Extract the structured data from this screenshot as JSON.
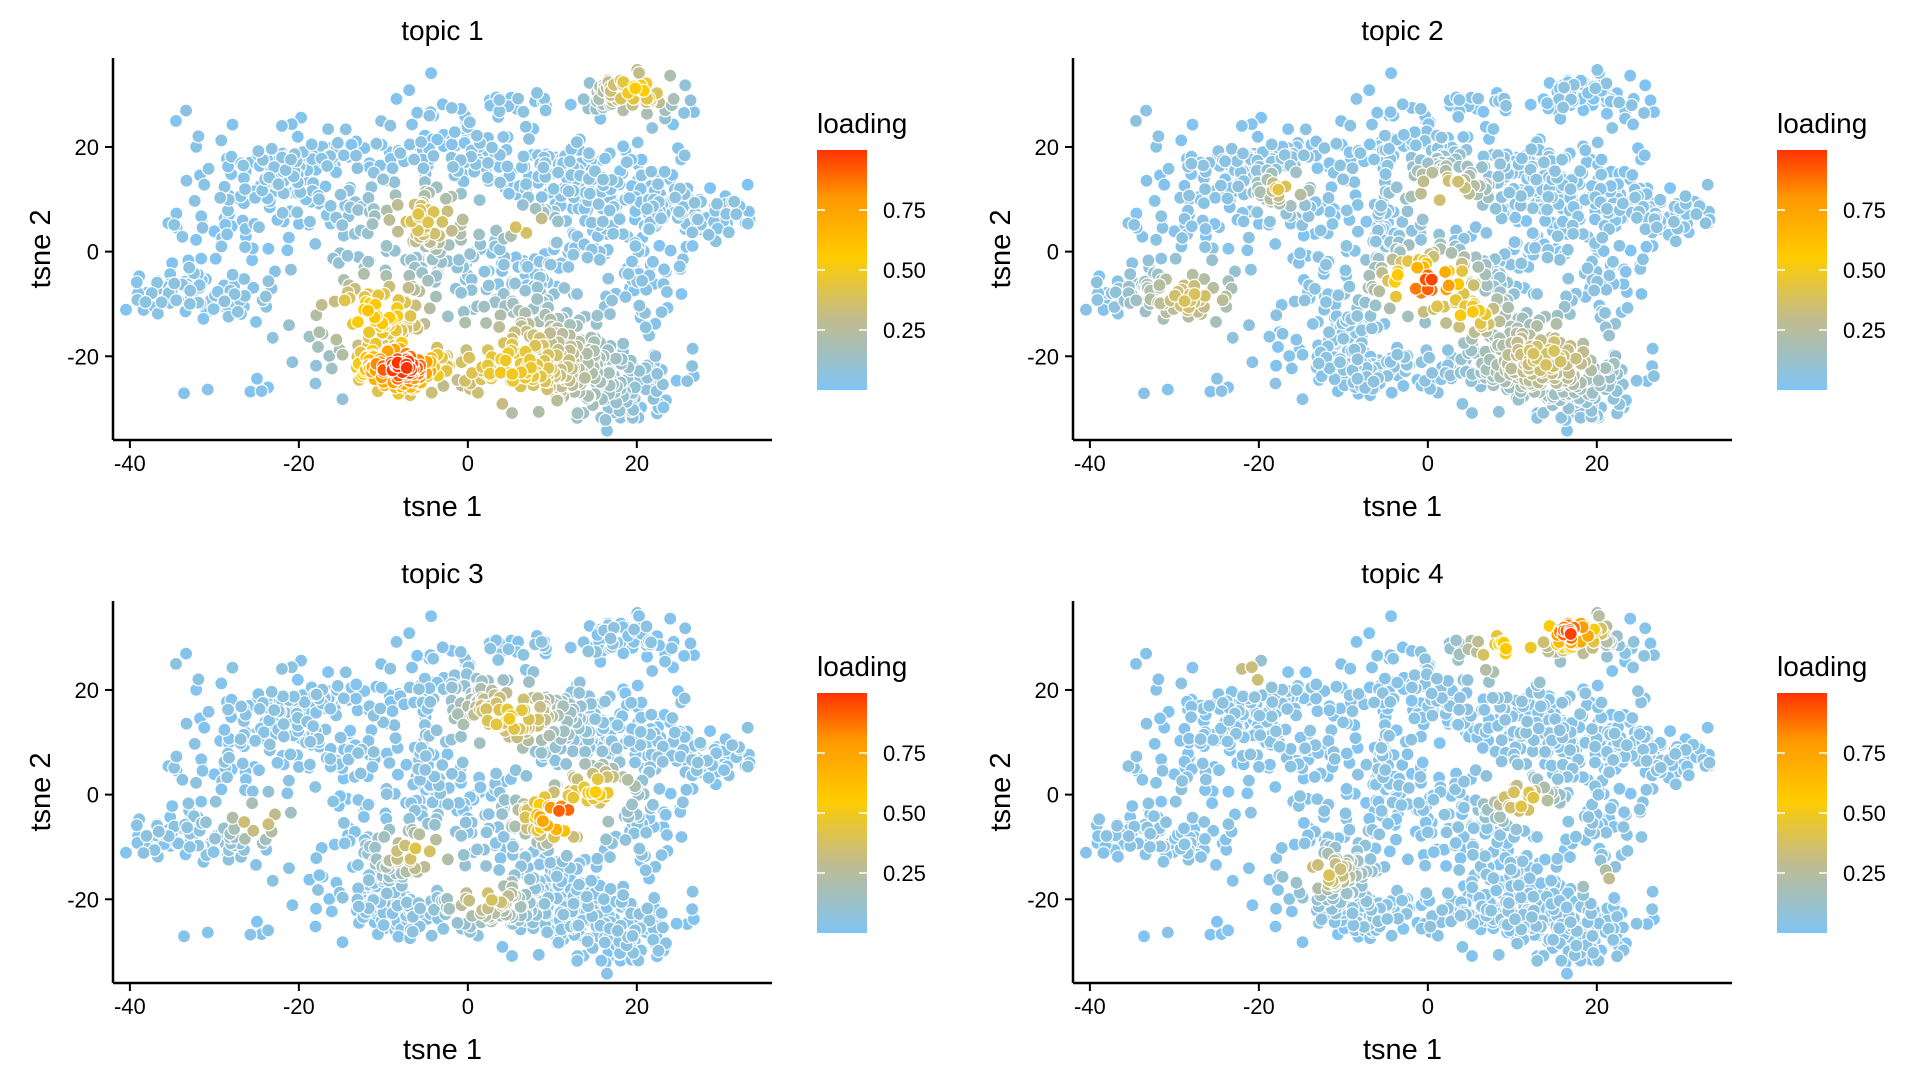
{
  "chart_data": [
    {
      "type": "scatter",
      "title": "topic 1",
      "xlabel": "tsne 1",
      "ylabel": "tsne 2",
      "xlim": [
        -42,
        36
      ],
      "ylim": [
        -36,
        37
      ],
      "xticks": [
        -40,
        -20,
        0,
        20
      ],
      "yticks": [
        -20,
        0,
        20
      ],
      "x_tick_labels": [
        "-40",
        "-20",
        "0",
        "20"
      ],
      "y_tick_labels": [
        "-20",
        "0",
        "20"
      ],
      "grid": false,
      "legend": {
        "title": "loading",
        "position": "right",
        "ticks": [
          0.25,
          0.5,
          0.75
        ],
        "tick_labels": [
          "0.25",
          "0.50",
          "0.75"
        ],
        "range": [
          0,
          1
        ]
      },
      "hotspots": [
        {
          "x": -8,
          "y": -22,
          "peak": 1.0,
          "spread": 4
        },
        {
          "x": -11,
          "y": -12,
          "peak": 0.55,
          "spread": 5
        },
        {
          "x": -5,
          "y": 6,
          "peak": 0.4,
          "spread": 4
        },
        {
          "x": 5,
          "y": -22,
          "peak": 0.45,
          "spread": 7
        },
        {
          "x": 20,
          "y": 31,
          "peak": 0.5,
          "spread": 3
        },
        {
          "x": 7,
          "y": 5,
          "peak": 0.45,
          "spread": 2
        }
      ]
    },
    {
      "type": "scatter",
      "title": "topic 2",
      "xlabel": "tsne 1",
      "ylabel": "tsne 2",
      "xlim": [
        -42,
        36
      ],
      "ylim": [
        -36,
        37
      ],
      "xticks": [
        -40,
        -20,
        0,
        20
      ],
      "yticks": [
        -20,
        0,
        20
      ],
      "x_tick_labels": [
        "-40",
        "-20",
        "0",
        "20"
      ],
      "y_tick_labels": [
        "-20",
        "0",
        "20"
      ],
      "grid": false,
      "legend": {
        "title": "loading",
        "position": "right",
        "ticks": [
          0.25,
          0.5,
          0.75
        ],
        "tick_labels": [
          "0.25",
          "0.50",
          "0.75"
        ],
        "range": [
          0,
          1
        ]
      },
      "hotspots": [
        {
          "x": 0,
          "y": -6,
          "peak": 0.95,
          "spread": 3.5
        },
        {
          "x": 5,
          "y": -12,
          "peak": 0.5,
          "spread": 3
        },
        {
          "x": -28,
          "y": -9,
          "peak": 0.35,
          "spread": 4
        },
        {
          "x": 14,
          "y": -20,
          "peak": 0.35,
          "spread": 5
        },
        {
          "x": 2,
          "y": 12,
          "peak": 0.4,
          "spread": 3
        },
        {
          "x": -17,
          "y": 12,
          "peak": 0.4,
          "spread": 2
        }
      ]
    },
    {
      "type": "scatter",
      "title": "topic 3",
      "xlabel": "tsne 1",
      "ylabel": "tsne 2",
      "xlim": [
        -42,
        36
      ],
      "ylim": [
        -36,
        37
      ],
      "xticks": [
        -40,
        -20,
        0,
        20
      ],
      "yticks": [
        -20,
        0,
        20
      ],
      "x_tick_labels": [
        "-40",
        "-20",
        "0",
        "20"
      ],
      "y_tick_labels": [
        "-20",
        "0",
        "20"
      ],
      "grid": false,
      "legend": {
        "title": "loading",
        "position": "right",
        "ticks": [
          0.25,
          0.5,
          0.75
        ],
        "tick_labels": [
          "0.25",
          "0.50",
          "0.75"
        ],
        "range": [
          0,
          1
        ]
      },
      "hotspots": [
        {
          "x": 11,
          "y": -4,
          "peak": 0.95,
          "spread": 3
        },
        {
          "x": 15,
          "y": 1,
          "peak": 0.5,
          "spread": 3
        },
        {
          "x": 5,
          "y": 15,
          "peak": 0.45,
          "spread": 4
        },
        {
          "x": -6,
          "y": -11,
          "peak": 0.4,
          "spread": 3
        },
        {
          "x": -25,
          "y": -5,
          "peak": 0.4,
          "spread": 2.5
        },
        {
          "x": 2,
          "y": -20,
          "peak": 0.35,
          "spread": 3
        }
      ]
    },
    {
      "type": "scatter",
      "title": "topic 4",
      "xlabel": "tsne 1",
      "ylabel": "tsne 2",
      "xlim": [
        -42,
        36
      ],
      "ylim": [
        -36,
        37
      ],
      "xticks": [
        -40,
        -20,
        0,
        20
      ],
      "yticks": [
        -20,
        0,
        20
      ],
      "x_tick_labels": [
        "-40",
        "-20",
        "0",
        "20"
      ],
      "y_tick_labels": [
        "-20",
        "0",
        "20"
      ],
      "grid": false,
      "legend": {
        "title": "loading",
        "position": "right",
        "ticks": [
          0.25,
          0.5,
          0.75
        ],
        "tick_labels": [
          "0.25",
          "0.50",
          "0.75"
        ],
        "range": [
          0,
          1
        ]
      },
      "hotspots": [
        {
          "x": 17,
          "y": 31,
          "peak": 0.95,
          "spread": 2.5
        },
        {
          "x": 10,
          "y": 28,
          "peak": 0.55,
          "spread": 3.5
        },
        {
          "x": 11,
          "y": -1,
          "peak": 0.45,
          "spread": 2.5
        },
        {
          "x": -12,
          "y": -15,
          "peak": 0.4,
          "spread": 2.5
        },
        {
          "x": -21,
          "y": 23,
          "peak": 0.45,
          "spread": 1.5
        },
        {
          "x": 20,
          "y": -16,
          "peak": 0.45,
          "spread": 1.5
        }
      ]
    }
  ],
  "colors": {
    "low": "#80c4f4",
    "mid_low": "#c2bc8c",
    "mid": "#ffcc00",
    "mid_high": "#ff9900",
    "high": "#ff3300",
    "point_outline": "#ffffff",
    "axis": "#000000"
  }
}
